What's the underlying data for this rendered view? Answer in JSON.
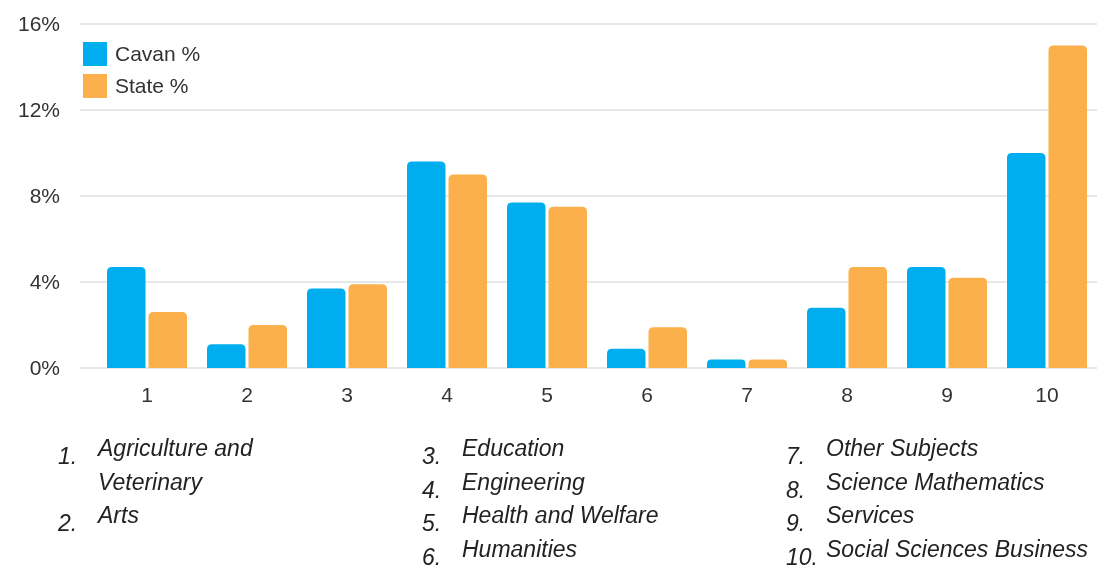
{
  "chart_data": {
    "type": "bar",
    "categories": [
      "1",
      "2",
      "3",
      "4",
      "5",
      "6",
      "7",
      "8",
      "9",
      "10"
    ],
    "series": [
      {
        "name": "Cavan %",
        "color": "#00aeef",
        "values": [
          4.7,
          1.1,
          3.7,
          9.6,
          7.7,
          0.9,
          0.4,
          2.8,
          4.7,
          10.0
        ]
      },
      {
        "name": "State %",
        "color": "#fbb04c",
        "values": [
          2.6,
          2.0,
          3.9,
          9.0,
          7.5,
          1.9,
          0.4,
          4.7,
          4.2,
          15.0
        ]
      }
    ],
    "ylim": [
      0,
      16
    ],
    "yticks": [
      {
        "value": 0,
        "label": "0%"
      },
      {
        "value": 4,
        "label": "4%"
      },
      {
        "value": 8,
        "label": "8%"
      },
      {
        "value": 12,
        "label": "12%"
      },
      {
        "value": 16,
        "label": "16%"
      }
    ],
    "grid": "y",
    "legend": "top left",
    "annotations": [
      "1. Agriculture and Veterinary",
      "2. Arts",
      "3. Education",
      "4. Engineering",
      "5. Health and Welfare",
      "6. Humanities",
      "7. Other Subjects",
      "8. Science Mathematics",
      "9. Services",
      "10. Social Sciences Business"
    ]
  }
}
